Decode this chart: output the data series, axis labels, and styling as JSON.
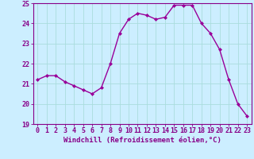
{
  "x": [
    0,
    1,
    2,
    3,
    4,
    5,
    6,
    7,
    8,
    9,
    10,
    11,
    12,
    13,
    14,
    15,
    16,
    17,
    18,
    19,
    20,
    21,
    22,
    23
  ],
  "y": [
    21.2,
    21.4,
    21.4,
    21.1,
    20.9,
    20.7,
    20.5,
    20.8,
    22.0,
    23.5,
    24.2,
    24.5,
    24.4,
    24.2,
    24.3,
    24.9,
    24.9,
    24.9,
    24.0,
    23.5,
    22.7,
    21.2,
    20.0,
    19.4
  ],
  "line_color": "#990099",
  "marker": "D",
  "marker_size": 2.0,
  "bg_color": "#cceeff",
  "grid_color": "#aadddd",
  "xlabel": "Windchill (Refroidissement éolien,°C)",
  "ylim": [
    19,
    25
  ],
  "xlim": [
    -0.5,
    23.5
  ],
  "yticks": [
    19,
    20,
    21,
    22,
    23,
    24,
    25
  ],
  "xticks": [
    0,
    1,
    2,
    3,
    4,
    5,
    6,
    7,
    8,
    9,
    10,
    11,
    12,
    13,
    14,
    15,
    16,
    17,
    18,
    19,
    20,
    21,
    22,
    23
  ],
  "xlabel_color": "#880088",
  "tick_color": "#880088",
  "axis_color": "#880088",
  "spine_color": "#880088",
  "label_fontsize": 6.5,
  "tick_fontsize": 6.0,
  "linewidth": 1.0
}
